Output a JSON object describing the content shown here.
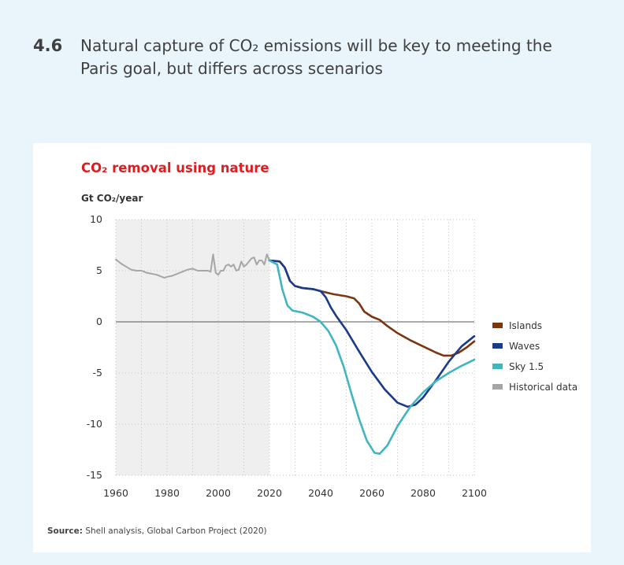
{
  "heading": {
    "number": "4.6",
    "text": "Natural capture of CO₂ emissions will be key to meeting the Paris goal, but differs across scenarios"
  },
  "source": {
    "label": "Source:",
    "text": "Shell analysis, Global Carbon Project (2020)"
  },
  "colors": {
    "page_bg": "#e9f5fb",
    "title_red": "#dd1d21",
    "islands": "#7b3610",
    "waves": "#1a3a8a",
    "sky": "#41b5c1",
    "historical": "#a6a6a6",
    "shade": "#efefef"
  },
  "chart_data": {
    "type": "line",
    "title": "CO₂ removal using nature",
    "ylabel": "Gt CO₂/year",
    "xlabel": "",
    "xlim": [
      1960,
      2100
    ],
    "ylim": [
      -15,
      10
    ],
    "x_ticks": [
      "1960",
      "1980",
      "2000",
      "2020",
      "2040",
      "2060",
      "2080",
      "2100"
    ],
    "y_ticks": [
      "10",
      "5",
      "0",
      "-5",
      "-10",
      "-15"
    ],
    "shaded_region": [
      1960,
      2020
    ],
    "legend_position": "right",
    "series": [
      {
        "name": "Islands",
        "color": "#7b3610",
        "points": [
          [
            2020,
            6.0
          ],
          [
            2024,
            5.9
          ],
          [
            2026,
            5.3
          ],
          [
            2028,
            4.0
          ],
          [
            2030,
            3.5
          ],
          [
            2033,
            3.3
          ],
          [
            2037,
            3.2
          ],
          [
            2040,
            3.0
          ],
          [
            2045,
            2.7
          ],
          [
            2050,
            2.5
          ],
          [
            2053,
            2.3
          ],
          [
            2055,
            1.8
          ],
          [
            2057,
            1.0
          ],
          [
            2060,
            0.5
          ],
          [
            2063,
            0.2
          ],
          [
            2066,
            -0.4
          ],
          [
            2070,
            -1.1
          ],
          [
            2075,
            -1.8
          ],
          [
            2080,
            -2.4
          ],
          [
            2085,
            -3.0
          ],
          [
            2088,
            -3.3
          ],
          [
            2091,
            -3.3
          ],
          [
            2094,
            -3.0
          ],
          [
            2097,
            -2.5
          ],
          [
            2100,
            -1.9
          ]
        ]
      },
      {
        "name": "Waves",
        "color": "#1a3a8a",
        "points": [
          [
            2020,
            6.0
          ],
          [
            2024,
            5.9
          ],
          [
            2026,
            5.3
          ],
          [
            2028,
            4.0
          ],
          [
            2030,
            3.5
          ],
          [
            2033,
            3.3
          ],
          [
            2037,
            3.2
          ],
          [
            2040,
            3.0
          ],
          [
            2042,
            2.4
          ],
          [
            2044,
            1.4
          ],
          [
            2046,
            0.6
          ],
          [
            2050,
            -0.8
          ],
          [
            2055,
            -2.9
          ],
          [
            2060,
            -4.9
          ],
          [
            2065,
            -6.6
          ],
          [
            2070,
            -7.9
          ],
          [
            2074,
            -8.3
          ],
          [
            2077,
            -8.1
          ],
          [
            2080,
            -7.4
          ],
          [
            2085,
            -5.7
          ],
          [
            2090,
            -3.9
          ],
          [
            2095,
            -2.4
          ],
          [
            2100,
            -1.4
          ]
        ]
      },
      {
        "name": "Sky 1.5",
        "color": "#41b5c1",
        "points": [
          [
            2020,
            6.0
          ],
          [
            2023,
            5.6
          ],
          [
            2025,
            3.2
          ],
          [
            2027,
            1.6
          ],
          [
            2029,
            1.1
          ],
          [
            2033,
            0.9
          ],
          [
            2037,
            0.5
          ],
          [
            2040,
            0.0
          ],
          [
            2043,
            -0.9
          ],
          [
            2046,
            -2.3
          ],
          [
            2049,
            -4.4
          ],
          [
            2052,
            -7.0
          ],
          [
            2055,
            -9.5
          ],
          [
            2058,
            -11.6
          ],
          [
            2061,
            -12.8
          ],
          [
            2063,
            -12.9
          ],
          [
            2066,
            -12.1
          ],
          [
            2070,
            -10.2
          ],
          [
            2075,
            -8.3
          ],
          [
            2080,
            -6.9
          ],
          [
            2085,
            -5.8
          ],
          [
            2090,
            -5.0
          ],
          [
            2095,
            -4.3
          ],
          [
            2100,
            -3.7
          ]
        ]
      },
      {
        "name": "Historical data",
        "color": "#a6a6a6",
        "points": [
          [
            1960,
            6.1
          ],
          [
            1962,
            5.7
          ],
          [
            1964,
            5.4
          ],
          [
            1966,
            5.1
          ],
          [
            1968,
            5.0
          ],
          [
            1970,
            5.0
          ],
          [
            1972,
            4.8
          ],
          [
            1974,
            4.7
          ],
          [
            1976,
            4.6
          ],
          [
            1978,
            4.4
          ],
          [
            1979,
            4.3
          ],
          [
            1980,
            4.4
          ],
          [
            1982,
            4.5
          ],
          [
            1984,
            4.7
          ],
          [
            1986,
            4.9
          ],
          [
            1988,
            5.1
          ],
          [
            1990,
            5.2
          ],
          [
            1992,
            5.0
          ],
          [
            1994,
            5.0
          ],
          [
            1996,
            5.0
          ],
          [
            1997,
            4.9
          ],
          [
            1998,
            6.6
          ],
          [
            1999,
            4.8
          ],
          [
            2000,
            4.6
          ],
          [
            2001,
            5.0
          ],
          [
            2002,
            5.0
          ],
          [
            2003,
            5.5
          ],
          [
            2004,
            5.6
          ],
          [
            2005,
            5.4
          ],
          [
            2006,
            5.6
          ],
          [
            2007,
            5.0
          ],
          [
            2008,
            5.1
          ],
          [
            2009,
            5.9
          ],
          [
            2010,
            5.4
          ],
          [
            2011,
            5.6
          ],
          [
            2012,
            5.9
          ],
          [
            2013,
            6.2
          ],
          [
            2014,
            6.3
          ],
          [
            2015,
            5.6
          ],
          [
            2016,
            6.0
          ],
          [
            2017,
            6.0
          ],
          [
            2018,
            5.6
          ],
          [
            2019,
            6.6
          ],
          [
            2020,
            6.0
          ]
        ]
      }
    ]
  }
}
